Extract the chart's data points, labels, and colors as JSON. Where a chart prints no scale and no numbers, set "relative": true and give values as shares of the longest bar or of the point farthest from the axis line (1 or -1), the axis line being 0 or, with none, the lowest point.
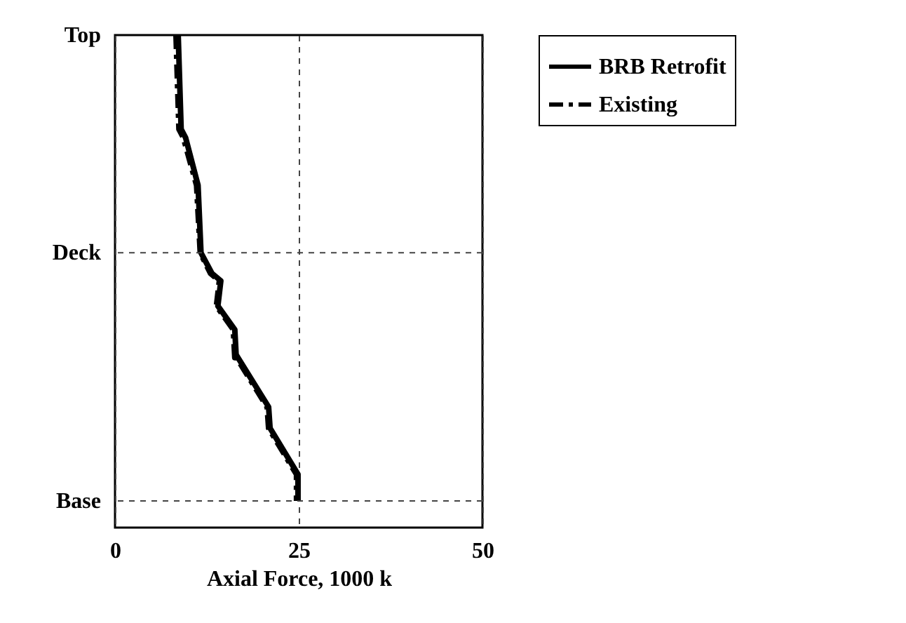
{
  "chart_data": {
    "type": "line",
    "xlabel": "Axial Force, 1000 k",
    "xlim": [
      0,
      50
    ],
    "xticks": [
      0,
      25,
      50
    ],
    "relative": true,
    "ref_lines": [
      {
        "axis": "y",
        "value": 0.054,
        "label": "Base",
        "line_style": "dashed",
        "color": "#444444"
      },
      {
        "axis": "y",
        "value": 0.558,
        "label": "Deck",
        "line_style": "dashed",
        "color": "#444444"
      }
    ],
    "annotations": [
      "Top"
    ],
    "grid": "x",
    "legend": "top right",
    "series": [
      {
        "name": "BRB Retrofit",
        "color": "#000000",
        "line_style": "solid",
        "x": [
          8.6,
          9.0,
          9.6,
          11.3,
          11.7,
          13.2,
          14.4,
          14.0,
          16.3,
          16.5,
          16.4,
          20.9,
          21.1,
          24.9,
          24.9
        ],
        "values": [
          1.0,
          0.809,
          0.792,
          0.695,
          0.558,
          0.516,
          0.501,
          0.45,
          0.402,
          0.345,
          0.353,
          0.245,
          0.202,
          0.108,
          0.054
        ]
      },
      {
        "name": "Existing",
        "color": "#000000",
        "line_style": "dashdot",
        "x": [
          8.3,
          8.7,
          9.3,
          11.1,
          11.6,
          13.0,
          14.2,
          13.8,
          16.1,
          16.3,
          16.2,
          20.7,
          20.9,
          24.7,
          24.7
        ],
        "values": [
          1.0,
          0.809,
          0.792,
          0.695,
          0.558,
          0.516,
          0.501,
          0.45,
          0.402,
          0.345,
          0.353,
          0.245,
          0.202,
          0.108,
          0.054
        ]
      }
    ]
  }
}
